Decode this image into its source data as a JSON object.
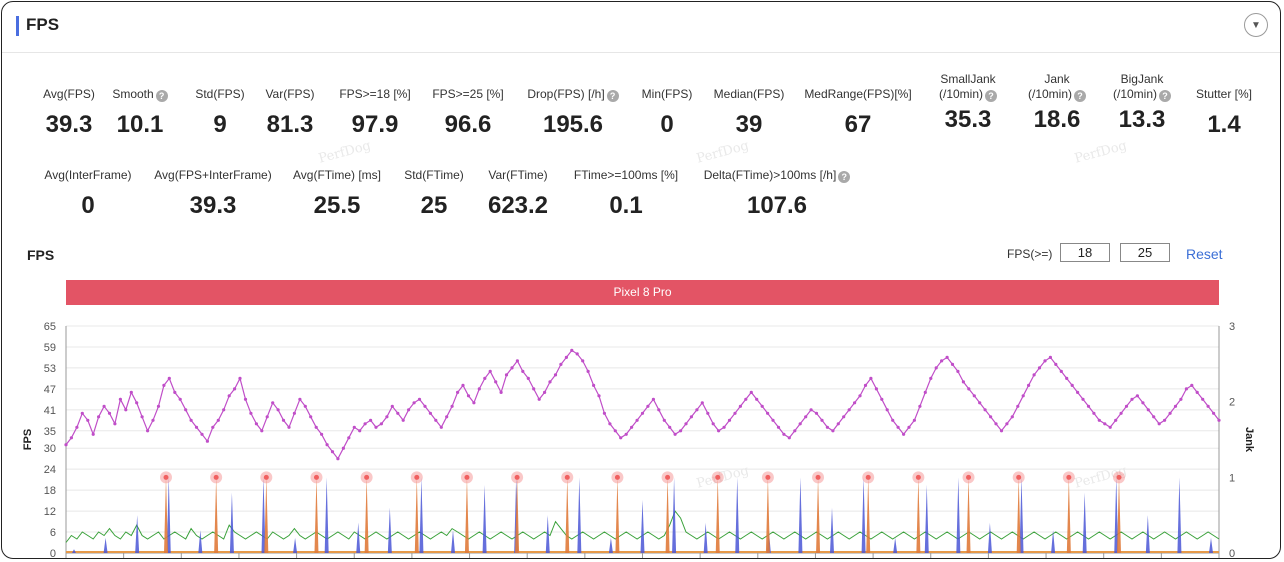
{
  "panel": {
    "title": "FPS",
    "collapse_icon": "chevron-down-icon"
  },
  "stats_row1": [
    {
      "label": "Avg(FPS)",
      "value": "39.3",
      "help": false
    },
    {
      "label": "Smooth",
      "value": "10.1",
      "help": true
    },
    {
      "label": "Std(FPS)",
      "value": "9",
      "help": false
    },
    {
      "label": "Var(FPS)",
      "value": "81.3",
      "help": false
    },
    {
      "label": "FPS>=18 [%]",
      "value": "97.9",
      "help": false
    },
    {
      "label": "FPS>=25 [%]",
      "value": "96.6",
      "help": false
    },
    {
      "label": "Drop(FPS) [/h]",
      "value": "195.6",
      "help": true
    },
    {
      "label": "Min(FPS)",
      "value": "0",
      "help": false
    },
    {
      "label": "Median(FPS)",
      "value": "39",
      "help": false
    },
    {
      "label": "MedRange(FPS)[%]",
      "value": "67",
      "help": false
    },
    {
      "label": "SmallJank",
      "label2": "(/10min)",
      "value": "35.3",
      "help": true
    },
    {
      "label": "Jank",
      "label2": "(/10min)",
      "value": "18.6",
      "help": true
    },
    {
      "label": "BigJank",
      "label2": "(/10min)",
      "value": "13.3",
      "help": true
    },
    {
      "label": "Stutter [%]",
      "value": "1.4",
      "help": false
    }
  ],
  "stats_row2": [
    {
      "label": "Avg(InterFrame)",
      "value": "0",
      "help": false
    },
    {
      "label": "Avg(FPS+InterFrame)",
      "value": "39.3",
      "help": false
    },
    {
      "label": "Avg(FTime) [ms]",
      "value": "25.5",
      "help": false
    },
    {
      "label": "Std(FTime)",
      "value": "25",
      "help": false
    },
    {
      "label": "Var(FTime)",
      "value": "623.2",
      "help": false
    },
    {
      "label": "FTime>=100ms [%]",
      "value": "0.1",
      "help": false
    },
    {
      "label": "Delta(FTime)>100ms [/h]",
      "value": "107.6",
      "help": true
    }
  ],
  "chart_header": {
    "title": "FPS",
    "threshold_label": "FPS(>=)",
    "threshold_low": "18",
    "threshold_high": "25",
    "reset_label": "Reset"
  },
  "device_name": "Pixel 8 Pro",
  "watermark_text": "PerfDog",
  "colors": {
    "fps_line": "#c04ec8",
    "interframe_line": "#3aa13a",
    "jank_bars": "#4a56d6",
    "bigjank_bars": "#e07a3a",
    "jank_marker": "#f06060",
    "banner": "#e35465",
    "accent": "#4a6ee0"
  },
  "chart_data": {
    "type": "line",
    "title": "FPS",
    "ylabel": "FPS",
    "y2label": "Jank",
    "ylim": [
      0,
      65
    ],
    "y2lim": [
      0,
      3
    ],
    "yticks": [
      "0",
      "6",
      "12",
      "18",
      "24",
      "30",
      "35",
      "41",
      "47",
      "53",
      "59",
      "65"
    ],
    "y2ticks": [
      "0",
      "1",
      "2",
      "3"
    ],
    "grid": true,
    "series": [
      {
        "name": "FPS",
        "values": [
          31,
          33,
          36,
          40,
          38,
          34,
          39,
          42,
          40,
          37,
          44,
          41,
          46,
          43,
          39,
          35,
          38,
          42,
          48,
          50,
          46,
          44,
          41,
          38,
          36,
          34,
          32,
          36,
          38,
          41,
          45,
          47,
          50,
          44,
          40,
          37,
          35,
          39,
          43,
          41,
          38,
          36,
          40,
          44,
          42,
          39,
          36,
          34,
          31,
          29,
          27,
          30,
          33,
          36,
          35,
          37,
          38,
          36,
          37,
          39,
          42,
          40,
          38,
          41,
          43,
          44,
          42,
          40,
          38,
          36,
          39,
          42,
          46,
          48,
          45,
          43,
          47,
          50,
          52,
          49,
          46,
          51,
          53,
          55,
          52,
          50,
          47,
          44,
          46,
          49,
          51,
          54,
          56,
          58,
          57,
          55,
          52,
          48,
          45,
          40,
          37,
          35,
          33,
          34,
          36,
          38,
          40,
          42,
          44,
          41,
          38,
          36,
          34,
          35,
          37,
          39,
          41,
          43,
          40,
          37,
          35,
          36,
          38,
          40,
          42,
          44,
          46,
          44,
          42,
          40,
          38,
          36,
          34,
          33,
          35,
          37,
          39,
          41,
          40,
          38,
          36,
          35,
          37,
          39,
          41,
          43,
          45,
          48,
          50,
          47,
          44,
          41,
          38,
          36,
          34,
          36,
          38,
          42,
          46,
          50,
          53,
          55,
          56,
          54,
          52,
          49,
          47,
          45,
          43,
          41,
          39,
          37,
          35,
          37,
          39,
          42,
          45,
          48,
          51,
          53,
          55,
          56,
          54,
          52,
          50,
          48,
          46,
          44,
          42,
          40,
          38,
          37,
          36,
          38,
          40,
          42,
          44,
          45,
          43,
          41,
          39,
          37,
          38,
          40,
          42,
          44,
          47,
          48,
          46,
          44,
          42,
          40,
          38
        ]
      },
      {
        "name": "InterFrame",
        "values": [
          3,
          5,
          4,
          6,
          5,
          4,
          6,
          5,
          7,
          5,
          4,
          6,
          5,
          8,
          5,
          4,
          5,
          6,
          4,
          5,
          6,
          5,
          4,
          7,
          5,
          4,
          5,
          6,
          5,
          4,
          8,
          6,
          5,
          4,
          5,
          6,
          5,
          4,
          6,
          5,
          4,
          5,
          7,
          5,
          4,
          5,
          6,
          5,
          4,
          5,
          6,
          5,
          4,
          6,
          5,
          4,
          5,
          6,
          5,
          4,
          5,
          6,
          5,
          4,
          5,
          6,
          5,
          4,
          5,
          6,
          5,
          7,
          6,
          5,
          4,
          5,
          6,
          5,
          4,
          5,
          6,
          5,
          4,
          5,
          6,
          5,
          4,
          5,
          6,
          5,
          9,
          7,
          5,
          4,
          5,
          6,
          5,
          4,
          5,
          6,
          5,
          4,
          5,
          6,
          5,
          4,
          5,
          6,
          5,
          4,
          5,
          8,
          12,
          10,
          6,
          5,
          4,
          5,
          6,
          5,
          4,
          5,
          6,
          5,
          4,
          5,
          6,
          5,
          4,
          5,
          6,
          5,
          4,
          5,
          6,
          5,
          4,
          5,
          6,
          5,
          4,
          5,
          6,
          5,
          4,
          5,
          6,
          5,
          4,
          5,
          6,
          5,
          4,
          5,
          6,
          5,
          4,
          5,
          6,
          5,
          4,
          5,
          6,
          5,
          4,
          5,
          6,
          5,
          4,
          5,
          6,
          5,
          4,
          5,
          6,
          5,
          4,
          5,
          6,
          5,
          4,
          5,
          6,
          5,
          4,
          5,
          6,
          5,
          4,
          5,
          6,
          5,
          4,
          5,
          6,
          5,
          4,
          5,
          6,
          5,
          4,
          5,
          6,
          5,
          4,
          5,
          6,
          5,
          4,
          5,
          6,
          5,
          4
        ]
      },
      {
        "name": "Jank",
        "values": [
          0.05,
          0.2,
          0.5,
          1.0,
          0.3,
          0.8,
          1.0,
          0.2,
          1.0,
          0.4,
          0.6,
          1.0,
          0.3,
          0.9,
          1.0,
          0.5,
          1.0,
          0.2,
          0.7,
          1.0,
          0.4,
          1.0,
          0.3,
          1.0,
          0.6,
          1.0,
          0.2,
          0.9,
          1.0,
          0.4,
          1.0,
          0.3,
          0.8,
          1.0,
          0.5,
          1.0,
          0.2
        ]
      },
      {
        "name": "BigJank",
        "values": [
          1.0,
          1.0,
          1.0,
          1.0,
          1.0,
          1.0,
          1.0,
          1.0,
          1.0,
          1.0,
          1.0,
          1.0,
          1.0,
          1.0,
          1.0,
          1.0,
          1.0,
          1.0,
          1.0,
          1.0
        ]
      }
    ]
  }
}
